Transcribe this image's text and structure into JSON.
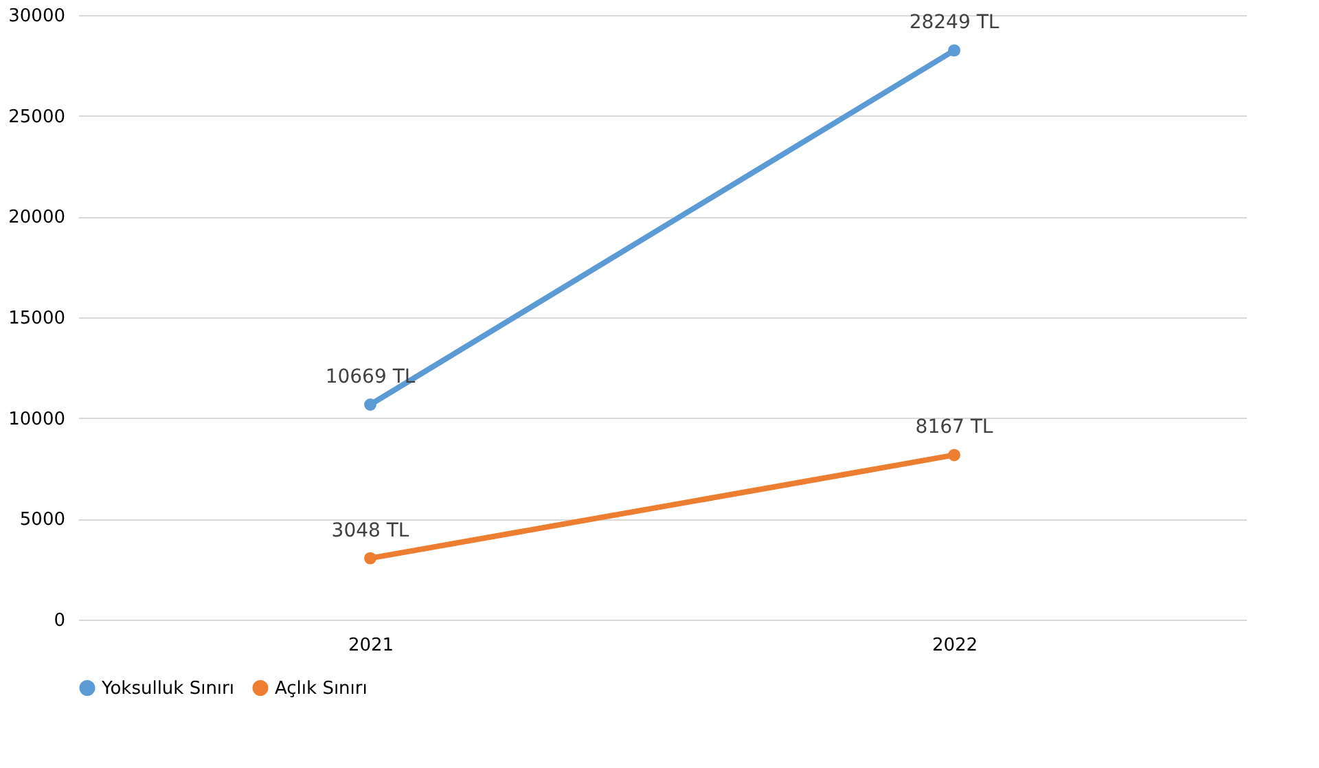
{
  "chart_data": {
    "type": "line",
    "categories": [
      "2021",
      "2022"
    ],
    "series": [
      {
        "name": "Yoksulluk Sınırı",
        "color": "#5b9bd5",
        "values": [
          10669,
          28249
        ],
        "value_labels": [
          "10669 TL",
          "28249 TL"
        ]
      },
      {
        "name": "Açlık Sınırı",
        "color": "#ed7d31",
        "values": [
          3048,
          8167
        ],
        "value_labels": [
          "3048 TL",
          "8167 TL"
        ]
      }
    ],
    "ylim": [
      0,
      30000
    ],
    "yticks": [
      0,
      5000,
      10000,
      15000,
      20000,
      25000,
      30000
    ],
    "grid": "y",
    "legend": "bottom",
    "marker": "circle",
    "line_style": "solid"
  }
}
